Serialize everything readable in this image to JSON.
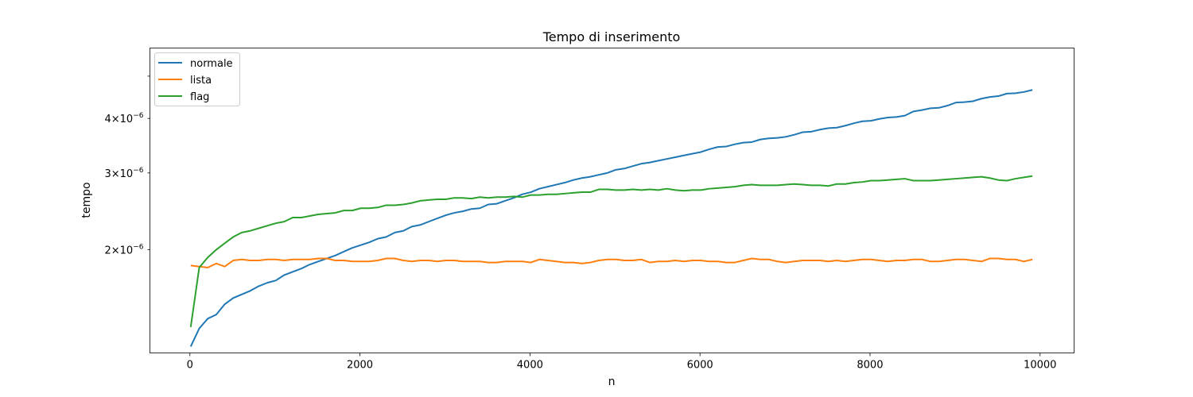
{
  "chart_data": {
    "type": "line",
    "title": "Tempo di inserimento",
    "xlabel": "n",
    "ylabel": "tempo",
    "yscale": "log",
    "xlim": [
      -470,
      10400
    ],
    "ylim": [
      1.16e-06,
      5.8e-06
    ],
    "x_ticks": [
      {
        "value": 0,
        "label": "0"
      },
      {
        "value": 2000,
        "label": "2000"
      },
      {
        "value": 4000,
        "label": "4000"
      },
      {
        "value": 6000,
        "label": "6000"
      },
      {
        "value": 8000,
        "label": "8000"
      },
      {
        "value": 10000,
        "label": "10000"
      }
    ],
    "y_ticks": [
      {
        "value": 2e-06,
        "mantissa": "2",
        "exp": "−6"
      },
      {
        "value": 3e-06,
        "mantissa": "3",
        "exp": "−6"
      },
      {
        "value": 4e-06,
        "mantissa": "4",
        "exp": "−6"
      },
      {
        "value": 5e-06,
        "mantissa": "",
        "exp": ""
      }
    ],
    "legend_position": "top-left",
    "grid": false,
    "x_start": 10,
    "x_step": 100,
    "series": [
      {
        "name": "normale",
        "color": "#1f77b4",
        "values": [
          1.2e-06,
          1.32e-06,
          1.39e-06,
          1.42e-06,
          1.5e-06,
          1.55e-06,
          1.58e-06,
          1.61e-06,
          1.65e-06,
          1.68e-06,
          1.7e-06,
          1.75e-06,
          1.78e-06,
          1.81e-06,
          1.85e-06,
          1.88e-06,
          1.91e-06,
          1.94e-06,
          1.98e-06,
          2.02e-06,
          2.05e-06,
          2.08e-06,
          2.12e-06,
          2.14e-06,
          2.19e-06,
          2.21e-06,
          2.26e-06,
          2.28e-06,
          2.32e-06,
          2.36e-06,
          2.4e-06,
          2.43e-06,
          2.45e-06,
          2.48e-06,
          2.49e-06,
          2.54e-06,
          2.55e-06,
          2.59e-06,
          2.63e-06,
          2.68e-06,
          2.71e-06,
          2.76e-06,
          2.79e-06,
          2.82e-06,
          2.85e-06,
          2.89e-06,
          2.92e-06,
          2.94e-06,
          2.97e-06,
          3e-06,
          3.05e-06,
          3.07e-06,
          3.11e-06,
          3.15e-06,
          3.17e-06,
          3.2e-06,
          3.23e-06,
          3.26e-06,
          3.29e-06,
          3.32e-06,
          3.35e-06,
          3.4e-06,
          3.44e-06,
          3.45e-06,
          3.49e-06,
          3.52e-06,
          3.53e-06,
          3.58e-06,
          3.6e-06,
          3.61e-06,
          3.63e-06,
          3.67e-06,
          3.72e-06,
          3.73e-06,
          3.77e-06,
          3.8e-06,
          3.81e-06,
          3.85e-06,
          3.9e-06,
          3.94e-06,
          3.95e-06,
          3.99e-06,
          4.02e-06,
          4.03e-06,
          4.06e-06,
          4.15e-06,
          4.18e-06,
          4.22e-06,
          4.23e-06,
          4.28e-06,
          4.35e-06,
          4.36e-06,
          4.38e-06,
          4.44e-06,
          4.48e-06,
          4.5e-06,
          4.56e-06,
          4.57e-06,
          4.6e-06,
          4.65e-06
        ]
      },
      {
        "name": "lista",
        "color": "#ff7f0e",
        "values": [
          1.84e-06,
          1.83e-06,
          1.82e-06,
          1.86e-06,
          1.83e-06,
          1.89e-06,
          1.9e-06,
          1.89e-06,
          1.89e-06,
          1.9e-06,
          1.9e-06,
          1.89e-06,
          1.9e-06,
          1.9e-06,
          1.9e-06,
          1.91e-06,
          1.91e-06,
          1.89e-06,
          1.89e-06,
          1.88e-06,
          1.88e-06,
          1.88e-06,
          1.89e-06,
          1.91e-06,
          1.91e-06,
          1.89e-06,
          1.88e-06,
          1.89e-06,
          1.89e-06,
          1.88e-06,
          1.89e-06,
          1.89e-06,
          1.88e-06,
          1.88e-06,
          1.88e-06,
          1.87e-06,
          1.87e-06,
          1.88e-06,
          1.88e-06,
          1.88e-06,
          1.87e-06,
          1.9e-06,
          1.89e-06,
          1.88e-06,
          1.87e-06,
          1.87e-06,
          1.86e-06,
          1.87e-06,
          1.89e-06,
          1.9e-06,
          1.9e-06,
          1.89e-06,
          1.89e-06,
          1.9e-06,
          1.87e-06,
          1.88e-06,
          1.88e-06,
          1.89e-06,
          1.88e-06,
          1.89e-06,
          1.89e-06,
          1.88e-06,
          1.88e-06,
          1.87e-06,
          1.87e-06,
          1.89e-06,
          1.91e-06,
          1.9e-06,
          1.9e-06,
          1.88e-06,
          1.87e-06,
          1.88e-06,
          1.89e-06,
          1.89e-06,
          1.89e-06,
          1.88e-06,
          1.89e-06,
          1.88e-06,
          1.89e-06,
          1.9e-06,
          1.9e-06,
          1.89e-06,
          1.88e-06,
          1.89e-06,
          1.89e-06,
          1.9e-06,
          1.9e-06,
          1.88e-06,
          1.88e-06,
          1.89e-06,
          1.9e-06,
          1.9e-06,
          1.89e-06,
          1.88e-06,
          1.91e-06,
          1.91e-06,
          1.9e-06,
          1.9e-06,
          1.88e-06,
          1.9e-06
        ]
      },
      {
        "name": "flag",
        "color": "#2ca02c",
        "values": [
          1.33e-06,
          1.82e-06,
          1.92e-06,
          2e-06,
          2.07e-06,
          2.14e-06,
          2.19e-06,
          2.21e-06,
          2.24e-06,
          2.27e-06,
          2.3e-06,
          2.32e-06,
          2.37e-06,
          2.37e-06,
          2.39e-06,
          2.41e-06,
          2.42e-06,
          2.43e-06,
          2.46e-06,
          2.46e-06,
          2.49e-06,
          2.49e-06,
          2.5e-06,
          2.53e-06,
          2.53e-06,
          2.54e-06,
          2.56e-06,
          2.59e-06,
          2.6e-06,
          2.61e-06,
          2.61e-06,
          2.63e-06,
          2.63e-06,
          2.62e-06,
          2.64e-06,
          2.63e-06,
          2.64e-06,
          2.64e-06,
          2.65e-06,
          2.64e-06,
          2.67e-06,
          2.67e-06,
          2.68e-06,
          2.68e-06,
          2.69e-06,
          2.7e-06,
          2.71e-06,
          2.71e-06,
          2.75e-06,
          2.75e-06,
          2.74e-06,
          2.74e-06,
          2.75e-06,
          2.74e-06,
          2.75e-06,
          2.74e-06,
          2.76e-06,
          2.74e-06,
          2.73e-06,
          2.74e-06,
          2.74e-06,
          2.76e-06,
          2.77e-06,
          2.78e-06,
          2.79e-06,
          2.81e-06,
          2.82e-06,
          2.81e-06,
          2.81e-06,
          2.81e-06,
          2.82e-06,
          2.83e-06,
          2.82e-06,
          2.81e-06,
          2.81e-06,
          2.8e-06,
          2.83e-06,
          2.83e-06,
          2.85e-06,
          2.86e-06,
          2.88e-06,
          2.88e-06,
          2.89e-06,
          2.9e-06,
          2.91e-06,
          2.88e-06,
          2.88e-06,
          2.88e-06,
          2.89e-06,
          2.9e-06,
          2.91e-06,
          2.92e-06,
          2.93e-06,
          2.94e-06,
          2.92e-06,
          2.89e-06,
          2.88e-06,
          2.91e-06,
          2.93e-06,
          2.95e-06
        ]
      }
    ]
  }
}
